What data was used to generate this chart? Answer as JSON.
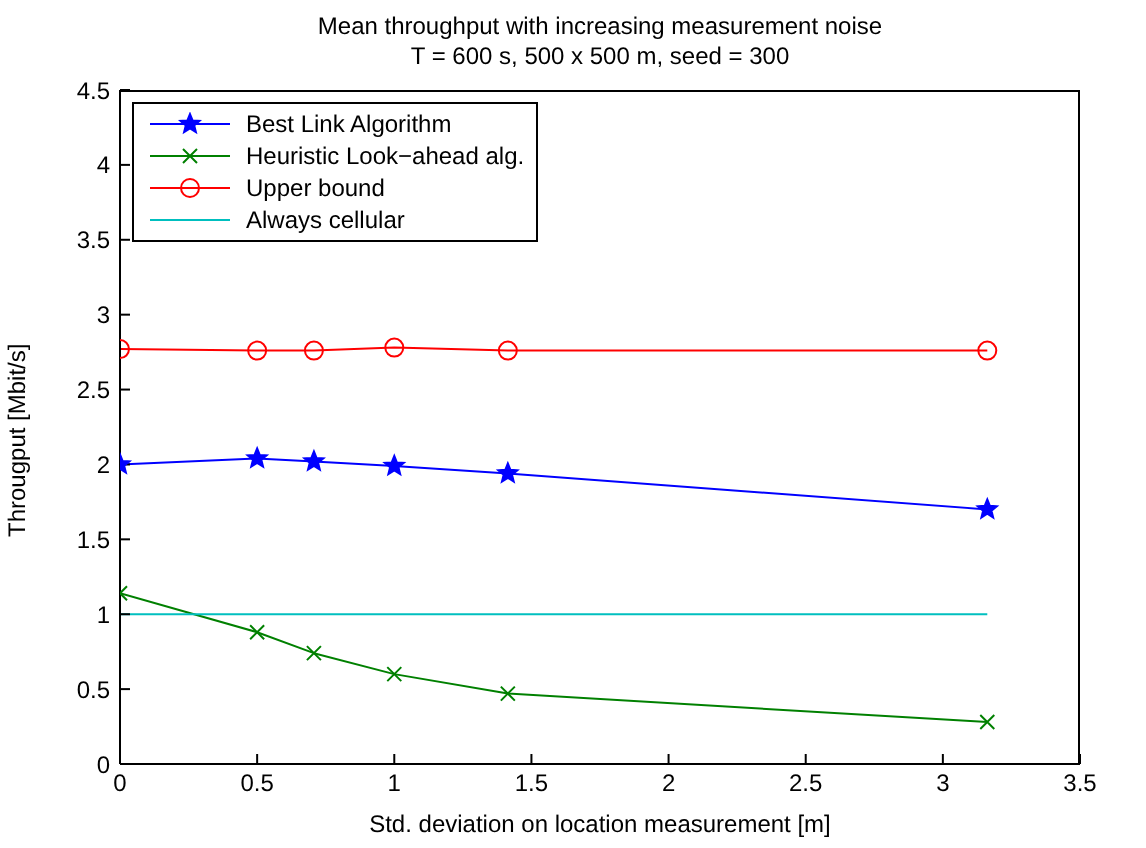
{
  "chart_data": {
    "type": "line",
    "title": "Mean throughput with increasing measurement noise",
    "subtitle": "T = 600 s, 500 x 500 m, seed = 300",
    "xlabel": "Std. deviation on location measurement [m]",
    "ylabel": "Througput [Mbit/s]",
    "x": [
      0,
      0.5,
      0.707,
      1,
      1.414,
      3.162
    ],
    "series": [
      {
        "name": "Best Link Algorithm",
        "color": "#0000ff",
        "marker": "star",
        "values": [
          2.0,
          2.04,
          2.02,
          1.99,
          1.94,
          1.7
        ]
      },
      {
        "name": "Heuristic Look−ahead alg.",
        "color": "#008000",
        "marker": "cross",
        "values": [
          1.14,
          0.88,
          0.74,
          0.6,
          0.47,
          0.28
        ]
      },
      {
        "name": "Upper bound",
        "color": "#ff0000",
        "marker": "circle",
        "values": [
          2.77,
          2.76,
          2.76,
          2.78,
          2.76,
          2.76
        ]
      },
      {
        "name": "Always cellular",
        "color": "#00bfbf",
        "marker": "none",
        "values": [
          1,
          1,
          1,
          1,
          1,
          1
        ]
      }
    ],
    "xlim": [
      0,
      3.5
    ],
    "xticks": [
      0,
      0.5,
      1,
      1.5,
      2,
      2.5,
      3,
      3.5
    ],
    "ylim": [
      0,
      4.5
    ],
    "yticks": [
      0,
      0.5,
      1,
      1.5,
      2,
      2.5,
      3,
      3.5,
      4,
      4.5
    ],
    "grid": false,
    "legend": "top left",
    "line_style": "solid"
  }
}
